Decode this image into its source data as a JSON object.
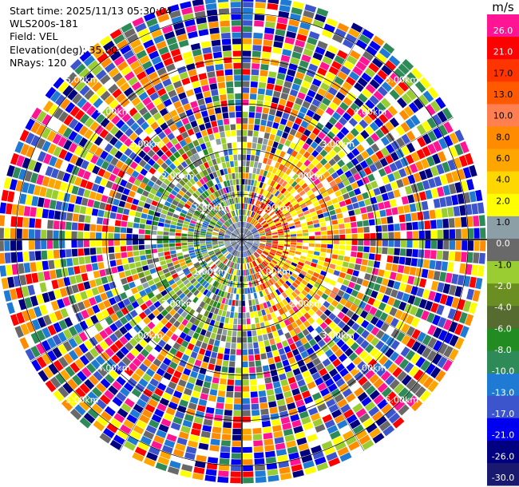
{
  "header": {
    "start_time": "Start time: 2025/11/13 05:30:04",
    "instrument": "WLS200s-181",
    "field": "Field: VEL",
    "elevation": "Elevation(deg): 35.00",
    "nrays": "NRays: 120"
  },
  "chart_data": {
    "type": "heatmap",
    "projection": "polar PPI",
    "field": "VEL",
    "n_rays": 120,
    "units": "m/s",
    "range_ring_labels": [
      "1.00km",
      "2.00km",
      "3.00km",
      "4.00km",
      "5.00km"
    ],
    "range_max_km": 5.4,
    "colorbar": {
      "title": "m/s",
      "ticks": [
        "26.0",
        "21.0",
        "17.0",
        "13.0",
        "10.0",
        "8.0",
        "6.0",
        "4.0",
        "2.0",
        "1.0",
        "0.0",
        "-1.0",
        "-2.0",
        "-4.0",
        "-6.0",
        "-8.0",
        "-10.0",
        "-13.0",
        "-17.0",
        "-21.0",
        "-26.0",
        "-30.0"
      ],
      "colors": [
        "#ff1493",
        "#ff0000",
        "#ff3500",
        "#ff5a00",
        "#ff7f50",
        "#ff8c00",
        "#ffa500",
        "#ffd700",
        "#ffff00",
        "#8c9ea6",
        "#696969",
        "#9acd32",
        "#6b8e23",
        "#556b2f",
        "#228b22",
        "#2e8b57",
        "#1e7ad2",
        "#3c55cc",
        "#0000ee",
        "#000080",
        "#191970"
      ]
    },
    "pattern_note_colors": [
      "#ff1493",
      "#ff0000",
      "#ffa500",
      "#ffff00",
      "#0000ee",
      "#000080",
      "#2e8b57",
      "#1e7ad2",
      "#9acd32",
      "#696969",
      "#ff8c00",
      "#3c55cc"
    ]
  }
}
